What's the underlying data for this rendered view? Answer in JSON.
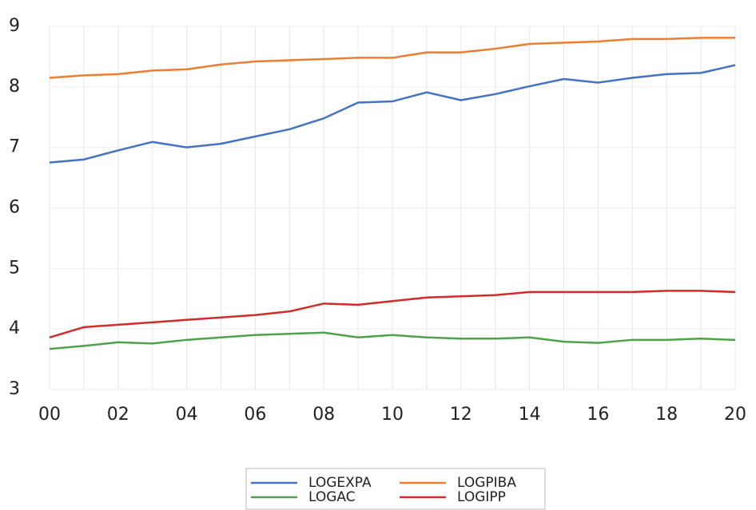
{
  "chart_data": {
    "type": "line",
    "categories": [
      "00",
      null,
      "02",
      null,
      "04",
      null,
      "06",
      null,
      "08",
      null,
      "10",
      null,
      "12",
      null,
      "14",
      null,
      "16",
      null,
      "18",
      null,
      "20"
    ],
    "series": [
      {
        "name": "LOGEXPA",
        "color": "#4472c4",
        "values": [
          6.75,
          6.8,
          6.95,
          7.09,
          7.0,
          7.06,
          7.18,
          7.3,
          7.48,
          7.74,
          7.76,
          7.91,
          7.78,
          7.88,
          8.01,
          8.13,
          8.07,
          8.15,
          8.21,
          8.23,
          8.36
        ]
      },
      {
        "name": "LOGPIBA",
        "color": "#ed7d31",
        "values": [
          8.15,
          8.19,
          8.21,
          8.27,
          8.29,
          8.37,
          8.42,
          8.44,
          8.46,
          8.48,
          8.48,
          8.57,
          8.57,
          8.63,
          8.71,
          8.73,
          8.75,
          8.79,
          8.79,
          8.81,
          8.81
        ]
      },
      {
        "name": "LOGAC",
        "color": "#4ea24a",
        "values": [
          3.67,
          3.72,
          3.78,
          3.76,
          3.82,
          3.86,
          3.9,
          3.92,
          3.94,
          3.86,
          3.9,
          3.86,
          3.84,
          3.84,
          3.86,
          3.79,
          3.77,
          3.82,
          3.82,
          3.84,
          3.82
        ]
      },
      {
        "name": "LOGIPP",
        "color": "#d42a2a",
        "values": [
          3.86,
          4.03,
          4.07,
          4.11,
          4.15,
          4.19,
          4.23,
          4.29,
          4.42,
          4.4,
          4.46,
          4.52,
          4.54,
          4.56,
          4.61,
          4.61,
          4.61,
          4.61,
          4.63,
          4.63,
          4.61
        ]
      }
    ],
    "ylim": [
      3,
      9
    ],
    "yticks": [
      3,
      4,
      5,
      6,
      7,
      8,
      9
    ],
    "grid": true,
    "legend": "bottom"
  }
}
